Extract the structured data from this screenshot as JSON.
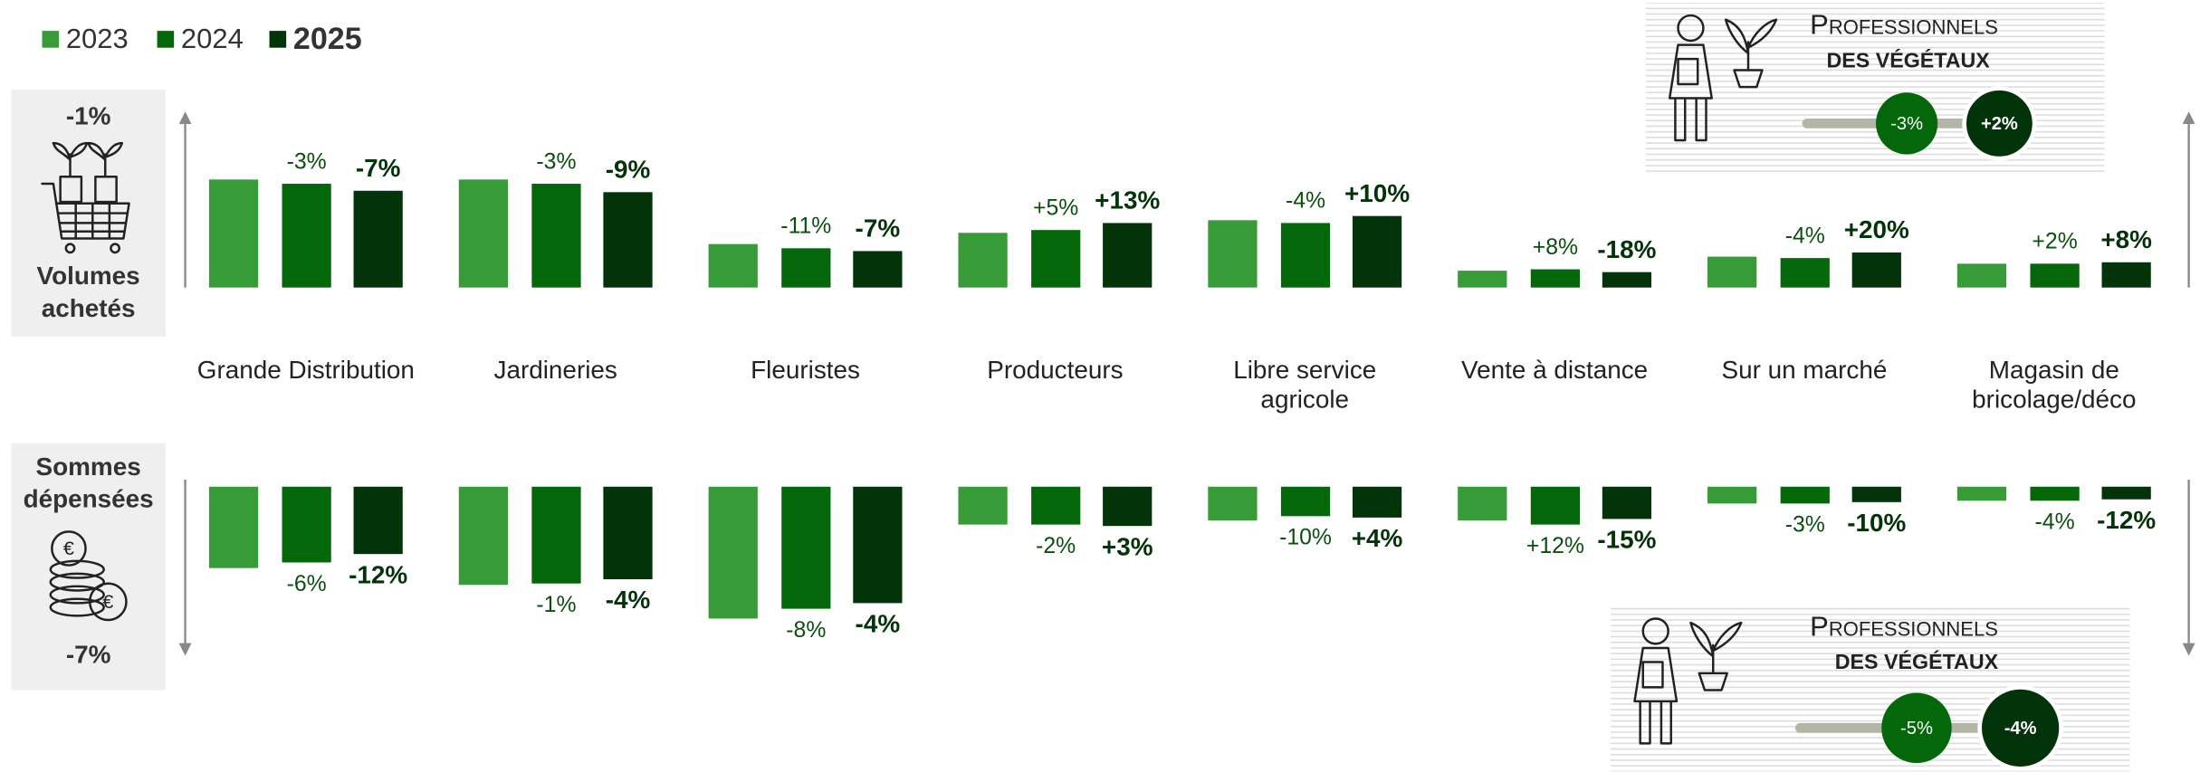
{
  "chart_data": [
    {
      "type": "bar",
      "title": [
        "Volumes",
        "achetés"
      ],
      "total_label": "-1%",
      "categories": [
        [
          "Grande Distribution"
        ],
        [
          "Jardineries"
        ],
        [
          "Fleuristes"
        ],
        [
          "Producteurs"
        ],
        [
          "Libre service",
          "agricole"
        ],
        [
          "Vente à distance"
        ],
        [
          "Sur un marché"
        ],
        [
          "Magasin de",
          "bricolage/déco"
        ]
      ],
      "series": [
        {
          "name": "2023",
          "color": "#379b37",
          "values": [
            77,
            77,
            31,
            39,
            48,
            12,
            22,
            17
          ]
        },
        {
          "name": "2024",
          "color": "#04680a",
          "values": [
            74,
            74,
            28,
            41,
            46,
            13,
            21,
            17
          ],
          "change_labels": [
            "-3%",
            "-3%",
            "-11%",
            "+5%",
            "-4%",
            "+8%",
            "-4%",
            "+2%"
          ]
        },
        {
          "name": "2025",
          "color": "#033308",
          "values": [
            69,
            68,
            26,
            46,
            51,
            11,
            25,
            18
          ],
          "change_labels": [
            "-7%",
            "-9%",
            "-7%",
            "+13%",
            "+10%",
            "-18%",
            "+20%",
            "+8%"
          ]
        }
      ]
    },
    {
      "type": "bar",
      "direction": "down",
      "title": [
        "Sommes",
        "dépensées"
      ],
      "total_label": "-7%",
      "series": [
        {
          "values": [
            58,
            70,
            94,
            27,
            24,
            24,
            12,
            10
          ]
        },
        {
          "values": [
            54,
            69,
            87,
            27,
            21,
            27,
            12,
            10
          ],
          "change_labels": [
            "-6%",
            "-1%",
            "-8%",
            "-2%",
            "-10%",
            "+12%",
            "-3%",
            "-4%"
          ]
        },
        {
          "values": [
            48,
            66,
            83,
            28,
            22,
            23,
            11,
            9
          ],
          "change_labels": [
            "-12%",
            "-4%",
            "-4%",
            "+3%",
            "+4%",
            "-15%",
            "-10%",
            "-12%"
          ]
        }
      ]
    }
  ],
  "professionals": [
    {
      "title": "Professionnels",
      "subtitle": "DES VÉGÉTAUX",
      "changes": [
        "-3%",
        "+2%"
      ]
    },
    {
      "title": "Professionnels",
      "subtitle": "DES VÉGÉTAUX",
      "changes": [
        "-5%",
        "-4%"
      ]
    }
  ]
}
